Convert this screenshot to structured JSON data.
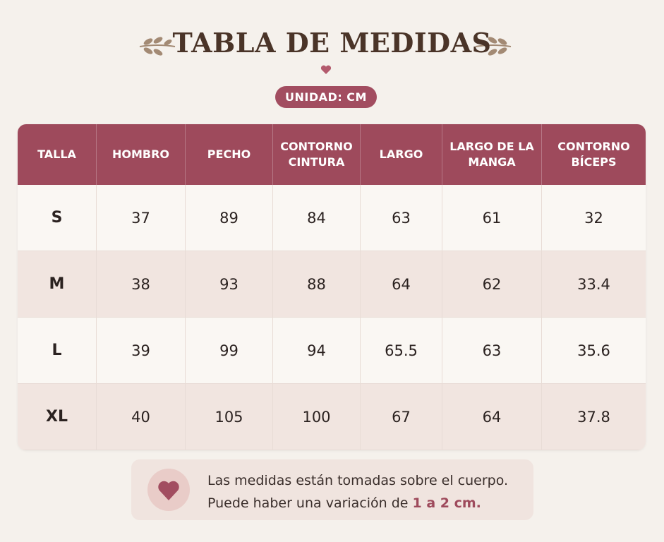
{
  "header": {
    "title": "TABLA DE MEDIDAS",
    "unit": "UNIDAD: CM"
  },
  "table": {
    "columns": [
      "TALLA",
      "HOMBRO",
      "PECHO",
      "CONTORNO CINTURA",
      "LARGO",
      "LARGO DE LA MANGA",
      "CONTORNO BÍCEPS"
    ],
    "rows": [
      [
        "S",
        37,
        89,
        84,
        63,
        61,
        32
      ],
      [
        "M",
        38,
        93,
        88,
        64,
        62,
        33.4
      ],
      [
        "L",
        39,
        99,
        94,
        65.5,
        63,
        35.6
      ],
      [
        "XL",
        40,
        105,
        100,
        67,
        64,
        37.8
      ]
    ]
  },
  "note": {
    "line1": "Las medidas están tomadas sobre el cuerpo.",
    "line2": "Puede haber una variación de",
    "highlight": "1 a 2 cm."
  }
}
